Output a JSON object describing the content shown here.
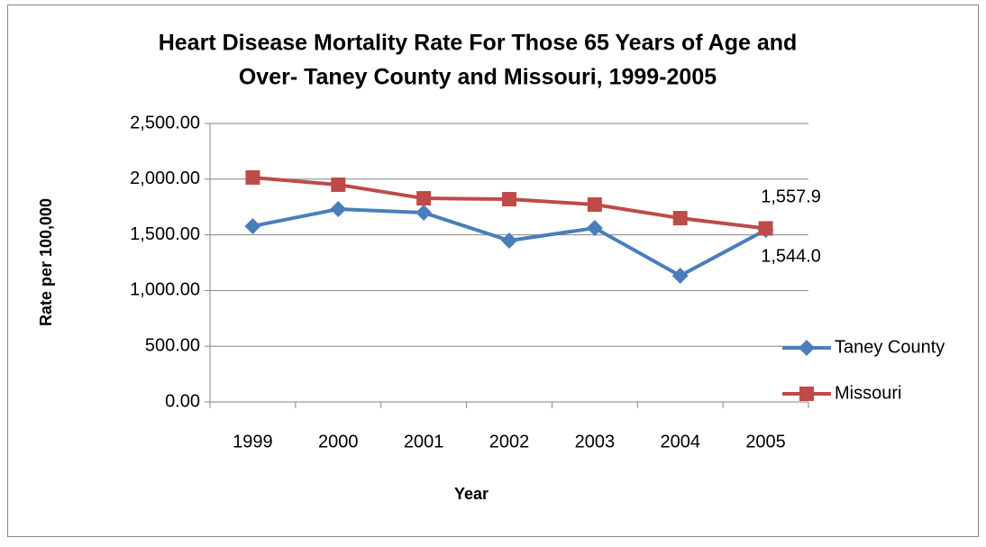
{
  "chart_data": {
    "type": "line",
    "title": [
      "Heart Disease Mortality Rate For Those 65 Years of Age and",
      "Over- Taney County and Missouri, 1999-2005"
    ],
    "x_label": "Year",
    "y_label": "Rate per 100,000",
    "categories": [
      "1999",
      "2000",
      "2001",
      "2002",
      "2003",
      "2004",
      "2005"
    ],
    "series": [
      {
        "name": "Taney County",
        "color": "#4a7ebb",
        "marker": "diamond",
        "values": [
          1578,
          1731,
          1699,
          1448,
          1561,
          1133,
          1544.0
        ],
        "value_labels": [
          null,
          null,
          null,
          null,
          null,
          null,
          "1,544.0"
        ]
      },
      {
        "name": "Missouri",
        "color": "#be4b48",
        "marker": "square",
        "values": [
          2015,
          1950,
          1828,
          1820,
          1772,
          1650,
          1557.9
        ],
        "value_labels": [
          null,
          null,
          null,
          null,
          null,
          null,
          "1,557.9"
        ]
      }
    ],
    "ylim": [
      0,
      2500
    ],
    "yticks": [
      {
        "value": 0,
        "label": "0.00"
      },
      {
        "value": 500,
        "label": "500.00"
      },
      {
        "value": 1000,
        "label": "1,000.00"
      },
      {
        "value": 1500,
        "label": "1,500.00"
      },
      {
        "value": 2000,
        "label": "2,000.00"
      },
      {
        "value": 2500,
        "label": "2,500.00"
      }
    ],
    "grid": true,
    "legend": "right"
  }
}
